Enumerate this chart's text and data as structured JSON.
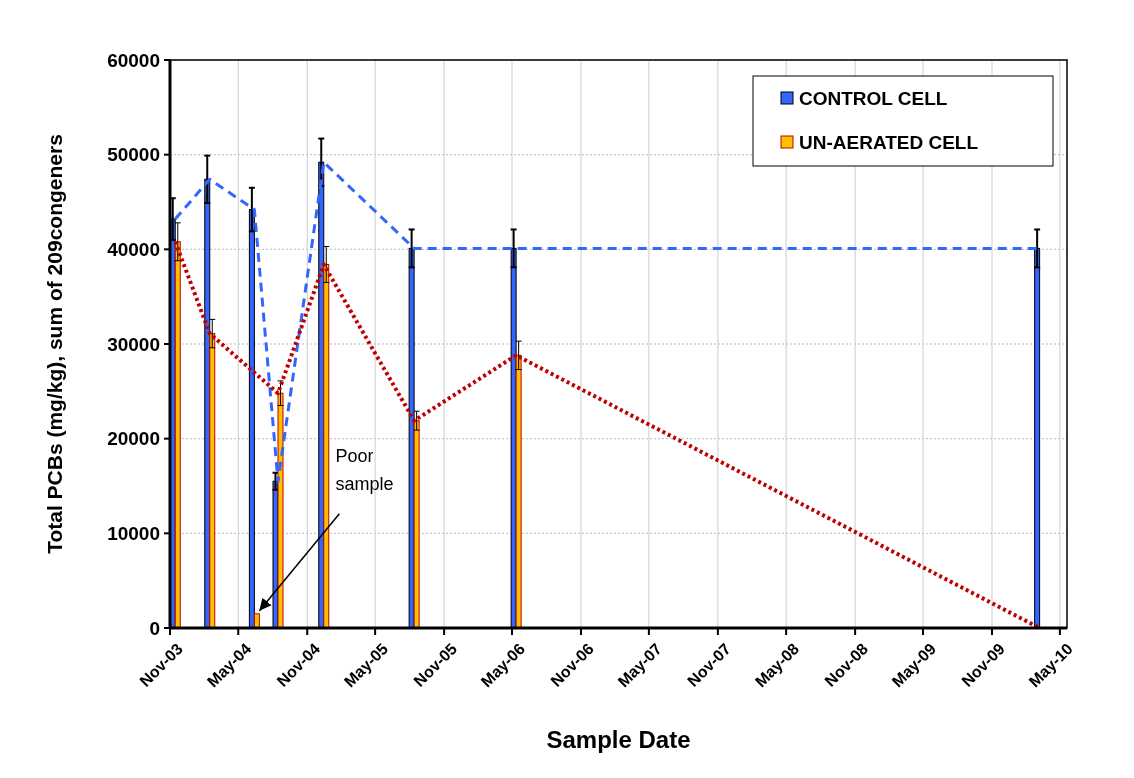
{
  "chart_data": {
    "type": "bar",
    "xlabel": "Sample Date",
    "ylabel": "Total PCBs (mg/kg), sum of 209congeners",
    "x": [
      "2003-11-15",
      "2004-02-15",
      "2004-06-13",
      "2004-08-15",
      "2004-12-15",
      "2005-08-13",
      "2006-05-12",
      "2010-03-08"
    ],
    "series": [
      {
        "name": "CONTROL CELL",
        "color": "#3366ff",
        "values": [
          43200,
          47400,
          44200,
          15500,
          49200,
          40100,
          40100,
          40100
        ],
        "errors": [
          2200,
          2500,
          2300,
          900,
          2500,
          2000,
          2000,
          2000
        ]
      },
      {
        "name": "UN-AERATED CELL",
        "color": "#ffc000",
        "values": [
          40800,
          31100,
          1500,
          24800,
          38400,
          21900,
          28800,
          null
        ],
        "errors": [
          2000,
          1500,
          null,
          1300,
          1900,
          1000,
          1500,
          null
        ]
      },
      {
        "type": "line",
        "color": "#3366ff",
        "line_style": "dashed",
        "x": [
          "2003-11-15",
          "2004-02-15",
          "2004-06-13",
          "2004-08-15",
          "2004-12-15",
          "2005-08-13",
          "2006-05-12",
          "2010-03-08"
        ],
        "values": [
          43200,
          47400,
          44200,
          15500,
          49200,
          40100,
          40100,
          40100
        ]
      },
      {
        "type": "line",
        "color": "#c00000",
        "line_style": "dotted",
        "x": [
          "2003-11-15",
          "2004-02-15",
          "2004-08-15",
          "2004-12-15",
          "2005-08-13",
          "2006-05-12",
          "2010-03-08"
        ],
        "values": [
          40800,
          31100,
          24800,
          38400,
          21900,
          28800,
          0
        ]
      }
    ],
    "xlim": [
      "2003-11-01",
      "2010-05-20"
    ],
    "xticks": [
      {
        "value": "2003-11-01",
        "label": "Nov-03"
      },
      {
        "value": "2004-05-01",
        "label": "May-04"
      },
      {
        "value": "2004-11-01",
        "label": "Nov-04"
      },
      {
        "value": "2005-05-01",
        "label": "May-05"
      },
      {
        "value": "2005-11-01",
        "label": "Nov-05"
      },
      {
        "value": "2006-05-01",
        "label": "May-06"
      },
      {
        "value": "2006-11-01",
        "label": "Nov-06"
      },
      {
        "value": "2007-05-01",
        "label": "May-07"
      },
      {
        "value": "2007-11-01",
        "label": "Nov-07"
      },
      {
        "value": "2008-05-01",
        "label": "May-08"
      },
      {
        "value": "2008-11-01",
        "label": "Nov-08"
      },
      {
        "value": "2009-05-01",
        "label": "May-09"
      },
      {
        "value": "2009-11-01",
        "label": "Nov-09"
      },
      {
        "value": "2010-05-01",
        "label": "May-10"
      }
    ],
    "ylim": [
      0,
      60000
    ],
    "yticks": [
      0,
      10000,
      20000,
      30000,
      40000,
      50000,
      60000
    ],
    "grid": true,
    "legend": "top right",
    "annotations": [
      {
        "text": "Poor sample",
        "x": "2004-06-13",
        "y": 1500
      }
    ]
  }
}
